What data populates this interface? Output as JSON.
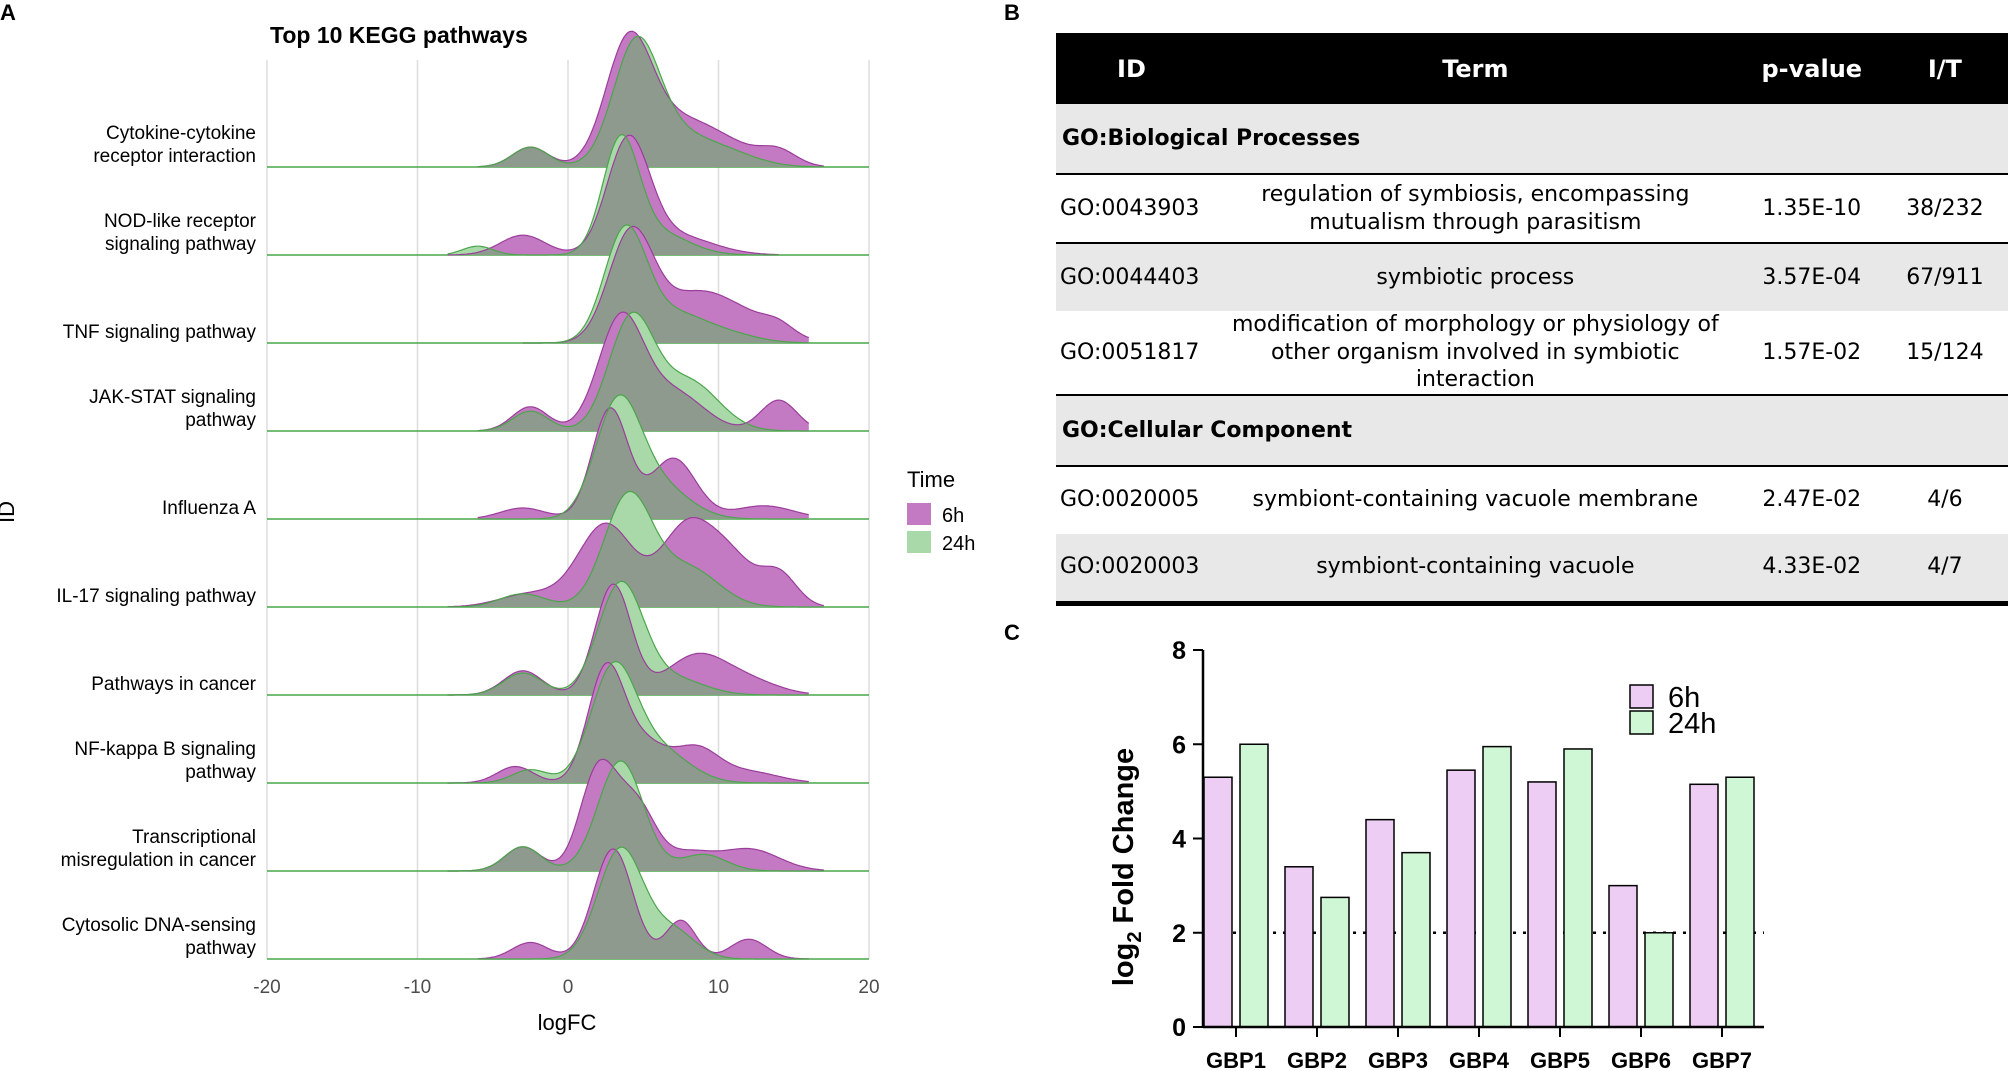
{
  "panel_labels": {
    "a": "A",
    "b": "B",
    "c": "C"
  },
  "colors": {
    "purple_fill": "#c37ac3",
    "purple_line": "#9b3d9b",
    "green_fill": "#a9d9a9",
    "green_line": "#4aa64a",
    "overlap_fill": "#8f9a8f",
    "bar_purple": "#edcdf3",
    "bar_green": "#cff7d5",
    "table_header": "#000000",
    "row_shade": "#e8e8e8"
  },
  "table": {
    "headers": {
      "id": "ID",
      "term": "Term",
      "pvalue": "p-value",
      "it": "I/T"
    },
    "sections": [
      {
        "title": "GO:Biological Processes",
        "rows": [
          {
            "id": "GO:0043903",
            "term": "regulation of symbiosis, encompassing mutualism through parasitism",
            "pvalue": "1.35E-10",
            "it": "38/232"
          },
          {
            "id": "GO:0044403",
            "term": "symbiotic process",
            "pvalue": "3.57E-04",
            "it": "67/911"
          },
          {
            "id": "GO:0051817",
            "term": "modification of morphology or physiology of other organism involved in symbiotic interaction",
            "pvalue": "1.57E-02",
            "it": "15/124"
          }
        ]
      },
      {
        "title": "GO:Cellular Component",
        "rows": [
          {
            "id": "GO:0020005",
            "term": "symbiont-containing vacuole membrane",
            "pvalue": "2.47E-02",
            "it": "4/6"
          },
          {
            "id": "GO:0020003",
            "term": "symbiont-containing vacuole",
            "pvalue": "4.33E-02",
            "it": "4/7"
          }
        ]
      }
    ]
  },
  "chart_data": [
    {
      "type": "ridgeline",
      "title": "Top 10 KEGG pathways",
      "xlabel": "logFC",
      "ylabel": "ID",
      "xlim": [
        -20,
        20
      ],
      "xticks": [
        -20,
        -10,
        0,
        10,
        20
      ],
      "grid": true,
      "legend": {
        "title": "Time",
        "placement": "right",
        "entries": [
          "6h",
          "24h"
        ]
      },
      "categories": [
        "Cytokine-cytokine receptor interaction",
        "NOD-like receptor signaling pathway",
        "TNF signaling pathway",
        "JAK-STAT signaling pathway",
        "Influenza A",
        "IL-17 signaling pathway",
        "Pathways in cancer",
        "NF-kappa B signaling pathway",
        "Transcriptional misregulation in cancer",
        "Cytosolic DNA-sensing pathway"
      ],
      "series": [
        {
          "name": "6h",
          "ridges": [
            {
              "range": [
                -6,
                17
              ],
              "components": [
                [
                  -2.5,
                  1.2,
                  0.18
                ],
                [
                  4,
                  1.5,
                  1.0
                ],
                [
                  6.5,
                  2.5,
                  0.35
                ],
                [
                  10,
                  2.5,
                  0.2
                ],
                [
                  14,
                  1.2,
                  0.12
                ]
              ]
            },
            {
              "range": [
                -8,
                14
              ],
              "components": [
                [
                  -3,
                  1.5,
                  0.18
                ],
                [
                  4,
                  1.4,
                  1.0
                ],
                [
                  7,
                  2.5,
                  0.18
                ]
              ]
            },
            {
              "range": [
                -3,
                16
              ],
              "components": [
                [
                  4.2,
                  1.5,
                  1.0
                ],
                [
                  8,
                  2,
                  0.3
                ],
                [
                  11,
                  2.5,
                  0.28
                ],
                [
                  14,
                  1,
                  0.08
                ]
              ]
            },
            {
              "range": [
                -6,
                16
              ],
              "components": [
                [
                  -2.5,
                  1.2,
                  0.22
                ],
                [
                  3.5,
                  1.5,
                  1.0
                ],
                [
                  7,
                  2,
                  0.35
                ],
                [
                  14,
                  1.2,
                  0.28
                ]
              ]
            },
            {
              "range": [
                -6,
                16
              ],
              "components": [
                [
                  -3,
                  1.5,
                  0.1
                ],
                [
                  2.8,
                  1.2,
                  1.0
                ],
                [
                  7,
                  1.5,
                  0.55
                ],
                [
                  13,
                  2,
                  0.12
                ]
              ]
            },
            {
              "range": [
                -8,
                17
              ],
              "components": [
                [
                  -2.5,
                  2,
                  0.12
                ],
                [
                  2.5,
                  1.8,
                  0.75
                ],
                [
                  8,
                  1.8,
                  0.75
                ],
                [
                  11,
                  1.5,
                  0.35
                ],
                [
                  14,
                  1.2,
                  0.3
                ]
              ]
            },
            {
              "range": [
                -8,
                16
              ],
              "components": [
                [
                  -3,
                  1.3,
                  0.22
                ],
                [
                  3,
                  1.2,
                  1.0
                ],
                [
                  8.5,
                  2,
                  0.35
                ],
                [
                  12,
                  2,
                  0.12
                ]
              ]
            },
            {
              "range": [
                -8,
                16
              ],
              "components": [
                [
                  -3.5,
                  1.2,
                  0.15
                ],
                [
                  2.5,
                  1.2,
                  1.0
                ],
                [
                  5,
                  1.5,
                  0.35
                ],
                [
                  8.5,
                  1.5,
                  0.3
                ],
                [
                  12,
                  2,
                  0.1
                ]
              ]
            },
            {
              "range": [
                -8,
                17
              ],
              "components": [
                [
                  -3,
                  1.2,
                  0.22
                ],
                [
                  2,
                  1.2,
                  0.9
                ],
                [
                  4.5,
                  1.3,
                  0.6
                ],
                [
                  8,
                  1.5,
                  0.15
                ],
                [
                  12,
                  2,
                  0.2
                ]
              ]
            },
            {
              "range": [
                -6,
                16
              ],
              "components": [
                [
                  -2.5,
                  1.2,
                  0.15
                ],
                [
                  3,
                  1.3,
                  1.0
                ],
                [
                  7.5,
                  1,
                  0.35
                ],
                [
                  12,
                  1.2,
                  0.18
                ]
              ]
            }
          ]
        },
        {
          "name": "24h",
          "ridges": [
            {
              "range": [
                -6,
                17
              ],
              "components": [
                [
                  -2.5,
                  1.2,
                  0.18
                ],
                [
                  4.5,
                  1.5,
                  1.0
                ],
                [
                  7,
                  2.5,
                  0.3
                ],
                [
                  11,
                  2,
                  0.08
                ]
              ]
            },
            {
              "range": [
                -8,
                14
              ],
              "components": [
                [
                  -6,
                  1,
                  0.08
                ],
                [
                  3.5,
                  1.2,
                  1.0
                ],
                [
                  6,
                  2,
                  0.2
                ]
              ]
            },
            {
              "range": [
                -3,
                16
              ],
              "components": [
                [
                  3.8,
                  1.4,
                  1.0
                ],
                [
                  7,
                  2,
                  0.25
                ],
                [
                  10.5,
                  2,
                  0.08
                ]
              ]
            },
            {
              "range": [
                -6,
                16
              ],
              "components": [
                [
                  -2.5,
                  1.2,
                  0.18
                ],
                [
                  4.2,
                  1.5,
                  1.0
                ],
                [
                  8,
                  2,
                  0.45
                ]
              ]
            },
            {
              "range": [
                -6,
                16
              ],
              "components": [
                [
                  3.3,
                  1.5,
                  1.0
                ],
                [
                  6,
                  2,
                  0.3
                ]
              ]
            },
            {
              "range": [
                -8,
                17
              ],
              "components": [
                [
                  -3,
                  1.5,
                  0.12
                ],
                [
                  4,
                  1.6,
                  1.0
                ],
                [
                  8,
                  2,
                  0.35
                ]
              ]
            },
            {
              "range": [
                -8,
                16
              ],
              "components": [
                [
                  -3,
                  1.3,
                  0.2
                ],
                [
                  3.5,
                  1.5,
                  1.0
                ],
                [
                  7,
                  2,
                  0.15
                ]
              ]
            },
            {
              "range": [
                -8,
                16
              ],
              "components": [
                [
                  -2.5,
                  1.2,
                  0.12
                ],
                [
                  3,
                  1.5,
                  1.0
                ],
                [
                  6,
                  2,
                  0.3
                ]
              ]
            },
            {
              "range": [
                -8,
                17
              ],
              "components": [
                [
                  -3,
                  1.2,
                  0.22
                ],
                [
                  3.5,
                  1.5,
                  1.0
                ],
                [
                  9,
                  1.5,
                  0.15
                ]
              ]
            },
            {
              "range": [
                -6,
                16
              ],
              "components": [
                [
                  3.5,
                  1.5,
                  1.0
                ],
                [
                  7,
                  1.5,
                  0.25
                ]
              ]
            }
          ]
        }
      ]
    },
    {
      "type": "bar",
      "ylabel": "log2 Fold Change",
      "ylim": [
        0,
        8
      ],
      "yticks": [
        0,
        2,
        4,
        6,
        8
      ],
      "reference_line": 2,
      "categories": [
        "GBP1",
        "GBP2",
        "GBP3",
        "GBP4",
        "GBP5",
        "GBP6",
        "GBP7"
      ],
      "legend": {
        "placement": "top-right",
        "entries": [
          "6h",
          "24h"
        ]
      },
      "series": [
        {
          "name": "6h",
          "values": [
            5.3,
            3.4,
            4.4,
            5.45,
            5.2,
            3.0,
            5.15
          ]
        },
        {
          "name": "24h",
          "values": [
            6.0,
            2.75,
            3.7,
            5.95,
            5.9,
            2.0,
            5.3
          ]
        }
      ]
    }
  ]
}
